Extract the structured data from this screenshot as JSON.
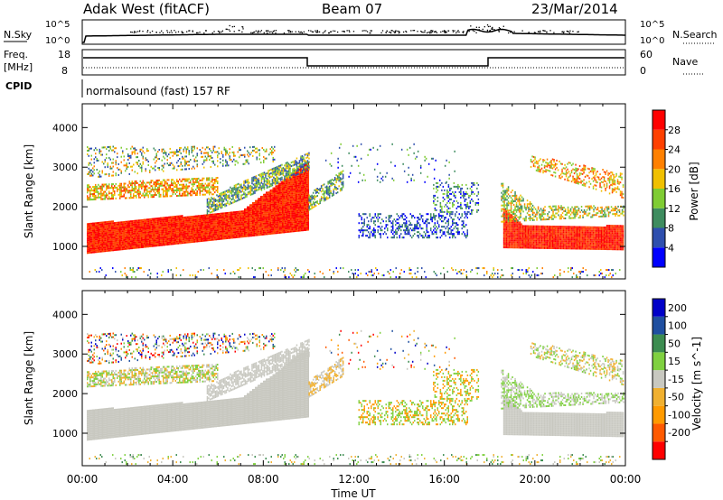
{
  "header": {
    "station": "Adak West (fitACF)",
    "beam": "Beam 07",
    "date": "23/Mar/2014"
  },
  "top_labels": {
    "nsky": "N.Sky",
    "nsearch": "N.Search",
    "freq_line1": "Freq.",
    "freq_line2": "[MHz]",
    "nave": "Nave",
    "cpid": "CPID",
    "noise_ticks_left": [
      "10^5",
      "10^0"
    ],
    "noise_ticks_right": [
      "10^5",
      "10^0"
    ],
    "freq_ticks": [
      "18",
      "8"
    ],
    "nave_ticks": [
      "60",
      "0"
    ],
    "cpid_text": "normalsound (fast) 157 RF"
  },
  "axes": {
    "ylabel": "Slant Range [km]",
    "xlabel": "Time UT",
    "y_ticks": [
      "1000",
      "2000",
      "3000",
      "4000"
    ],
    "x_ticks": [
      "00:00",
      "04:00",
      "08:00",
      "12:00",
      "16:00",
      "20:00",
      "00:00"
    ]
  },
  "colors": {
    "power": [
      "#0000ff",
      "#2e4fae",
      "#3e8c5f",
      "#7fcc33",
      "#f0c000",
      "#ff8000",
      "#ff4000",
      "#ff0000"
    ],
    "velocity": [
      "#ff0000",
      "#ff5a00",
      "#ff9a00",
      "#f0b030",
      "#c8c8c0",
      "#7fd040",
      "#3c8c50",
      "#1f4fa0",
      "#0000c8"
    ]
  },
  "chart_data": [
    {
      "type": "heatmap",
      "title": "Power",
      "xlabel": "Time UT",
      "ylabel": "Slant Range [km]",
      "xlim": [
        "00:00",
        "24:00"
      ],
      "ylim": [
        180,
        4600
      ],
      "colorbar": {
        "label": "Power [dB]",
        "ticks": [
          "4",
          "8",
          "12",
          "16",
          "20",
          "24",
          "28"
        ],
        "range": [
          0,
          32
        ]
      }
    },
    {
      "type": "heatmap",
      "title": "Velocity",
      "xlabel": "Time UT",
      "ylabel": "Slant Range [km]",
      "xlim": [
        "00:00",
        "24:00"
      ],
      "ylim": [
        180,
        4600
      ],
      "colorbar": {
        "label": "Velocity [m s^-1]",
        "ticks": [
          "200",
          "100",
          "50",
          "15",
          "-15",
          "-50",
          "-100",
          "-200"
        ]
      }
    }
  ]
}
